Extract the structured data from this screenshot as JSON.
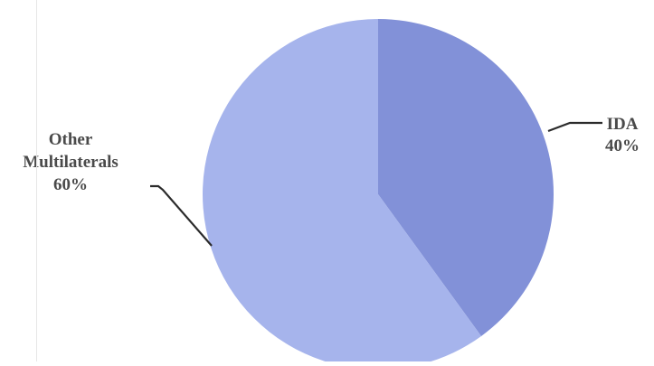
{
  "chart_data": {
    "type": "pie",
    "title": "",
    "slices": [
      {
        "label_lines": [
          "IDA"
        ],
        "value": 40,
        "value_label": "40%",
        "color": "#8291d8"
      },
      {
        "label_lines": [
          "Other",
          "Multilaterals"
        ],
        "value": 60,
        "value_label": "60%",
        "color": "#a6b4ec"
      }
    ],
    "start_angle_deg": 0,
    "direction": "clockwise",
    "legend": "none",
    "colors": {
      "leader_line": "#2b2b2b",
      "label_text": "#4a4a4a"
    }
  }
}
